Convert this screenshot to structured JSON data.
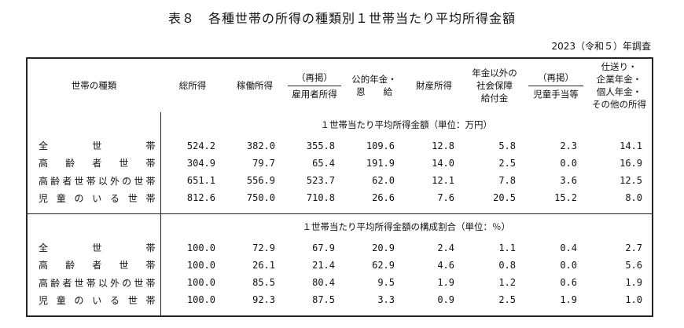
{
  "title": "表８　各種世帯の所得の種類別１世帯当たり平均所得金額",
  "year_note": "2023（令和５）年調査",
  "headers": {
    "household_type": "世帯の種類",
    "total_income": "総所得",
    "earned_income": "稼働所得",
    "employee_income_prefix": "（再掲）",
    "employee_income": "雇用者所得",
    "pension_line1": "公的年金・",
    "pension_line2": "恩　　給",
    "property_income": "財産所得",
    "social_security_line1": "年金以外の",
    "social_security_line2": "社会保障",
    "social_security_line3": "給付金",
    "child_allowance_prefix": "（再掲）",
    "child_allowance": "児童手当等",
    "other_line1": "仕送り・",
    "other_line2": "企業年金・",
    "other_line3": "個人年金・",
    "other_line4": "その他の所得"
  },
  "sections": [
    {
      "title": "１世帯当たり平均所得金額（単位：万円）",
      "rows": [
        {
          "label": "全世帯",
          "values": [
            "524.2",
            "382.0",
            "355.8",
            "109.6",
            "12.8",
            "5.8",
            "2.3",
            "14.1"
          ]
        },
        {
          "label": "高齢者世帯",
          "values": [
            "304.9",
            "79.7",
            "65.4",
            "191.9",
            "14.0",
            "2.5",
            "0.0",
            "16.9"
          ]
        },
        {
          "label": "高齢者世帯以外の世帯",
          "values": [
            "651.1",
            "556.9",
            "523.7",
            "62.0",
            "12.1",
            "7.8",
            "3.6",
            "12.5"
          ]
        },
        {
          "label": "児童のいる世帯",
          "values": [
            "812.6",
            "750.0",
            "710.8",
            "26.6",
            "7.6",
            "20.5",
            "15.2",
            "8.0"
          ]
        }
      ]
    },
    {
      "title": "１世帯当たり平均所得金額の構成割合（単位：％）",
      "rows": [
        {
          "label": "全世帯",
          "values": [
            "100.0",
            "72.9",
            "67.9",
            "20.9",
            "2.4",
            "1.1",
            "0.4",
            "2.7"
          ]
        },
        {
          "label": "高齢者世帯",
          "values": [
            "100.0",
            "26.1",
            "21.4",
            "62.9",
            "4.6",
            "0.8",
            "0.0",
            "5.6"
          ]
        },
        {
          "label": "高齢者世帯以外の世帯",
          "values": [
            "100.0",
            "85.5",
            "80.4",
            "9.5",
            "1.9",
            "1.2",
            "0.6",
            "1.9"
          ]
        },
        {
          "label": "児童のいる世帯",
          "values": [
            "100.0",
            "92.3",
            "87.5",
            "3.3",
            "0.9",
            "2.5",
            "1.9",
            "1.0"
          ]
        }
      ]
    }
  ]
}
